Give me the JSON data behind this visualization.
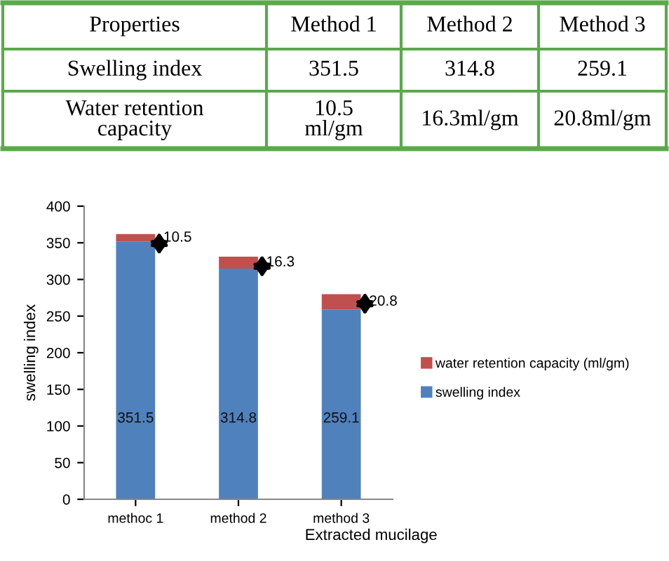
{
  "chart_data": {
    "type": "bar",
    "stacked": true,
    "categories": [
      "methoc 1",
      "method 2",
      "method 3"
    ],
    "series": [
      {
        "name": "swelling index",
        "color": "#4f81bd",
        "values": [
          351.5,
          314.8,
          259.1
        ]
      },
      {
        "name": "water retention capacity (ml/gm)",
        "color": "#c0504d",
        "values": [
          10.5,
          16.3,
          20.8
        ]
      }
    ],
    "data_labels": true,
    "xlabel": "Extracted mucilage",
    "ylabel": "swelling index",
    "ylim": [
      0,
      400
    ],
    "yticks": [
      0,
      50,
      100,
      150,
      200,
      250,
      300,
      350,
      400
    ],
    "grid": false,
    "legend": "right",
    "annotations": [
      "Properties",
      "Method 1",
      "Method 2",
      "Method 3",
      "Swelling index",
      "351.5",
      "314.8",
      "259.1",
      "Water retention\ncapacity",
      "10.5\nml/gm",
      "16.3ml/gm",
      "20.8ml/gm"
    ]
  }
}
